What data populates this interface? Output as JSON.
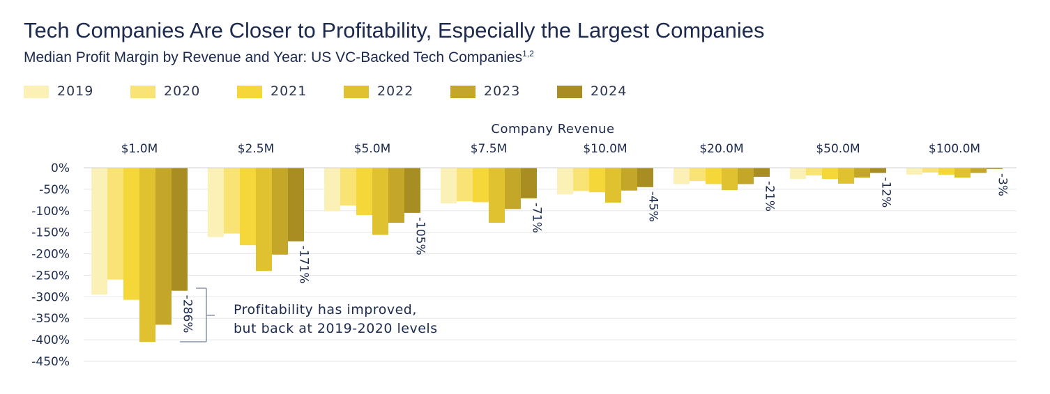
{
  "header": {
    "title": "Tech Companies Are Closer to Profitability, Especially the Largest Companies",
    "subtitle": "Median Profit Margin by Revenue and Year: US  VC-Backed Tech Companies",
    "subtitle_sup": "1,2"
  },
  "colors": {
    "series": [
      "#fbf0b5",
      "#f9e374",
      "#f5d73a",
      "#e0c12f",
      "#c4a629",
      "#a88e22"
    ],
    "grid": "#e6e6e6",
    "text": "#1b2a4e",
    "bracket": "#8a94a6"
  },
  "annotation": {
    "line1": "Profitability has improved,",
    "line2": "but back at 2019-2020 levels"
  },
  "chart_data": {
    "type": "bar",
    "title": "Tech Companies Are Closer to Profitability, Especially the Largest Companies",
    "subtitle": "Median Profit Margin by Revenue and Year: US  VC-Backed Tech Companies",
    "xlabel": "Company Revenue",
    "ylabel": "",
    "ylim": [
      -450,
      0
    ],
    "yticks": [
      "0%",
      "-50%",
      "-100%",
      "-150%",
      "-200%",
      "-250%",
      "-300%",
      "-350%",
      "-400%",
      "-450%"
    ],
    "categories": [
      "$1.0M",
      "$2.5M",
      "$5.0M",
      "$7.5M",
      "$10.0M",
      "$20.0M",
      "$50.0M",
      "$100.0M"
    ],
    "legend_position": "top-left",
    "series": [
      {
        "name": "2019",
        "values": [
          -295,
          -161,
          -101,
          -83,
          -62,
          -38,
          -26,
          -16
        ]
      },
      {
        "name": "2020",
        "values": [
          -260,
          -153,
          -88,
          -78,
          -54,
          -31,
          -18,
          -11
        ]
      },
      {
        "name": "2021",
        "values": [
          -307,
          -180,
          -110,
          -80,
          -57,
          -38,
          -26,
          -16
        ]
      },
      {
        "name": "2022",
        "values": [
          -405,
          -240,
          -156,
          -128,
          -81,
          -52,
          -37,
          -23
        ]
      },
      {
        "name": "2023",
        "values": [
          -365,
          -202,
          -128,
          -96,
          -53,
          -38,
          -23,
          -12
        ]
      },
      {
        "name": "2024",
        "values": [
          -286,
          -171,
          -105,
          -71,
          -45,
          -21,
          -12,
          -3
        ]
      }
    ],
    "data_labels": [
      "-286%",
      "-171%",
      "-105%",
      "-71%",
      "-45%",
      "-21%",
      "-12%",
      "-3%"
    ]
  }
}
